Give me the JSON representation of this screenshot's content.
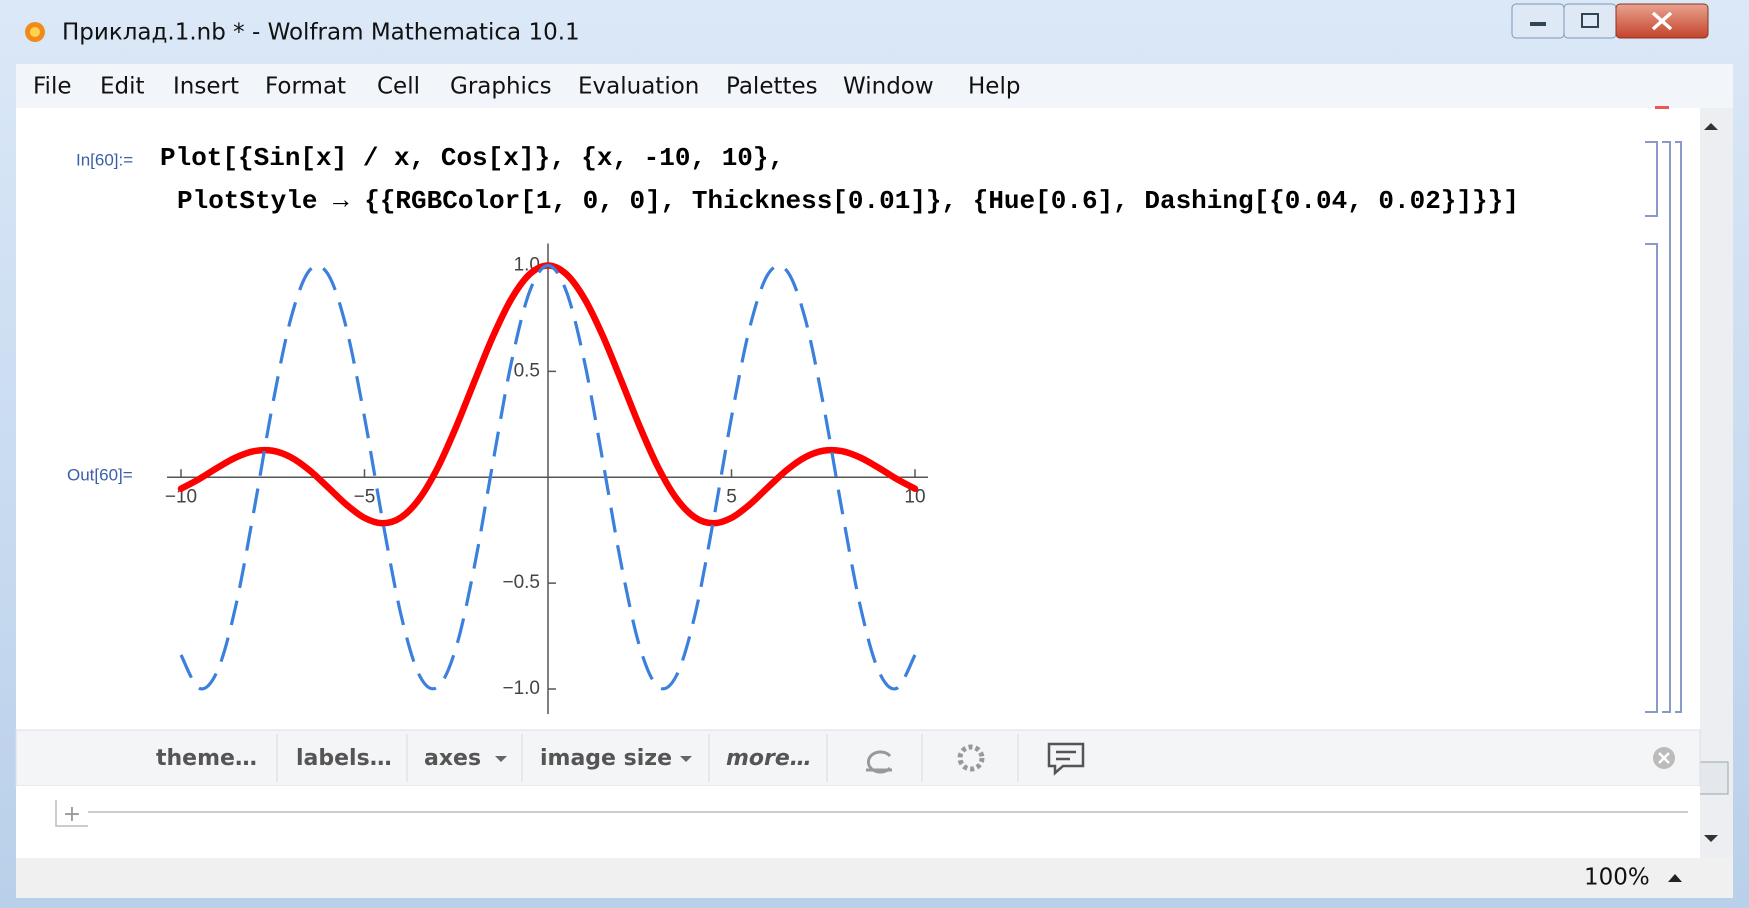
{
  "window": {
    "title": "Приклад.1.nb * - Wolfram Mathematica 10.1"
  },
  "menu": [
    "File",
    "Edit",
    "Insert",
    "Format",
    "Cell",
    "Graphics",
    "Evaluation",
    "Palettes",
    "Window",
    "Help"
  ],
  "input": {
    "label": "In[60]:=",
    "lines": [
      "Plot[{Sin[x] / x, Cos[x]}, {x, -10, 10},",
      "PlotStyle → {{RGBColor[1, 0, 0], Thickness[0.01]}, {Hue[0.6], Dashing[{0.04, 0.02}]}}]"
    ]
  },
  "output_label": "Out[60]=",
  "toolbar": [
    "theme…",
    "labels…",
    "axes",
    "image size",
    "more…"
  ],
  "status": {
    "zoom": "100%"
  },
  "chart_data": {
    "type": "line",
    "x": [
      -10,
      -9.5,
      -9,
      -8.5,
      -8,
      -7.5,
      -7,
      -6.5,
      -6,
      -5.5,
      -5,
      -4.5,
      -4,
      -3.5,
      -3,
      -2.5,
      -2,
      -1.5,
      -1,
      -0.5,
      0,
      0.5,
      1,
      1.5,
      2,
      2.5,
      3,
      3.5,
      4,
      4.5,
      5,
      5.5,
      6,
      6.5,
      7,
      7.5,
      8,
      8.5,
      9,
      9.5,
      10
    ],
    "series": [
      {
        "color": "#ff0000",
        "values": [
          -0.0544,
          -0.0079,
          0.0458,
          0.0939,
          0.1237,
          0.1251,
          0.0939,
          0.0331,
          -0.0466,
          -0.1283,
          -0.1918,
          -0.2172,
          -0.1892,
          -0.1002,
          0.047,
          0.2394,
          0.4546,
          0.665,
          0.8415,
          0.9589,
          1,
          0.9589,
          0.8415,
          0.665,
          0.4546,
          0.2394,
          0.047,
          -0.1002,
          -0.1892,
          -0.2172,
          -0.1918,
          -0.1283,
          -0.0466,
          0.0331,
          0.0939,
          0.1251,
          0.1237,
          0.0939,
          0.0458,
          -0.0079,
          -0.0544
        ]
      },
      {
        "color": "#3a80dc",
        "dashed": true,
        "values": [
          -0.8391,
          -0.9972,
          -0.9111,
          -0.602,
          -0.1455,
          0.3466,
          0.7539,
          0.9766,
          0.9602,
          0.7087,
          0.2837,
          -0.2108,
          -0.6536,
          -0.9365,
          -0.99,
          -0.8011,
          -0.4161,
          0.0707,
          0.5403,
          0.8776,
          1,
          0.8776,
          0.5403,
          0.0707,
          -0.4161,
          -0.8011,
          -0.99,
          -0.9365,
          -0.6536,
          -0.2108,
          0.2837,
          0.7087,
          0.9602,
          0.9766,
          0.7539,
          0.3466,
          -0.1455,
          -0.602,
          -0.9111,
          -0.9972,
          -0.8391
        ]
      }
    ],
    "xlim": [
      -10,
      10
    ],
    "ylim": [
      -1,
      1
    ],
    "xticks": [
      {
        "value": -10,
        "label": "−10"
      },
      {
        "value": -5,
        "label": "−5"
      },
      5,
      10
    ],
    "yticks": [
      {
        "value": 1,
        "label": "1.0"
      },
      0.5,
      {
        "value": -0.5,
        "label": "−0.5"
      },
      {
        "value": -1,
        "label": "−1.0"
      }
    ]
  }
}
